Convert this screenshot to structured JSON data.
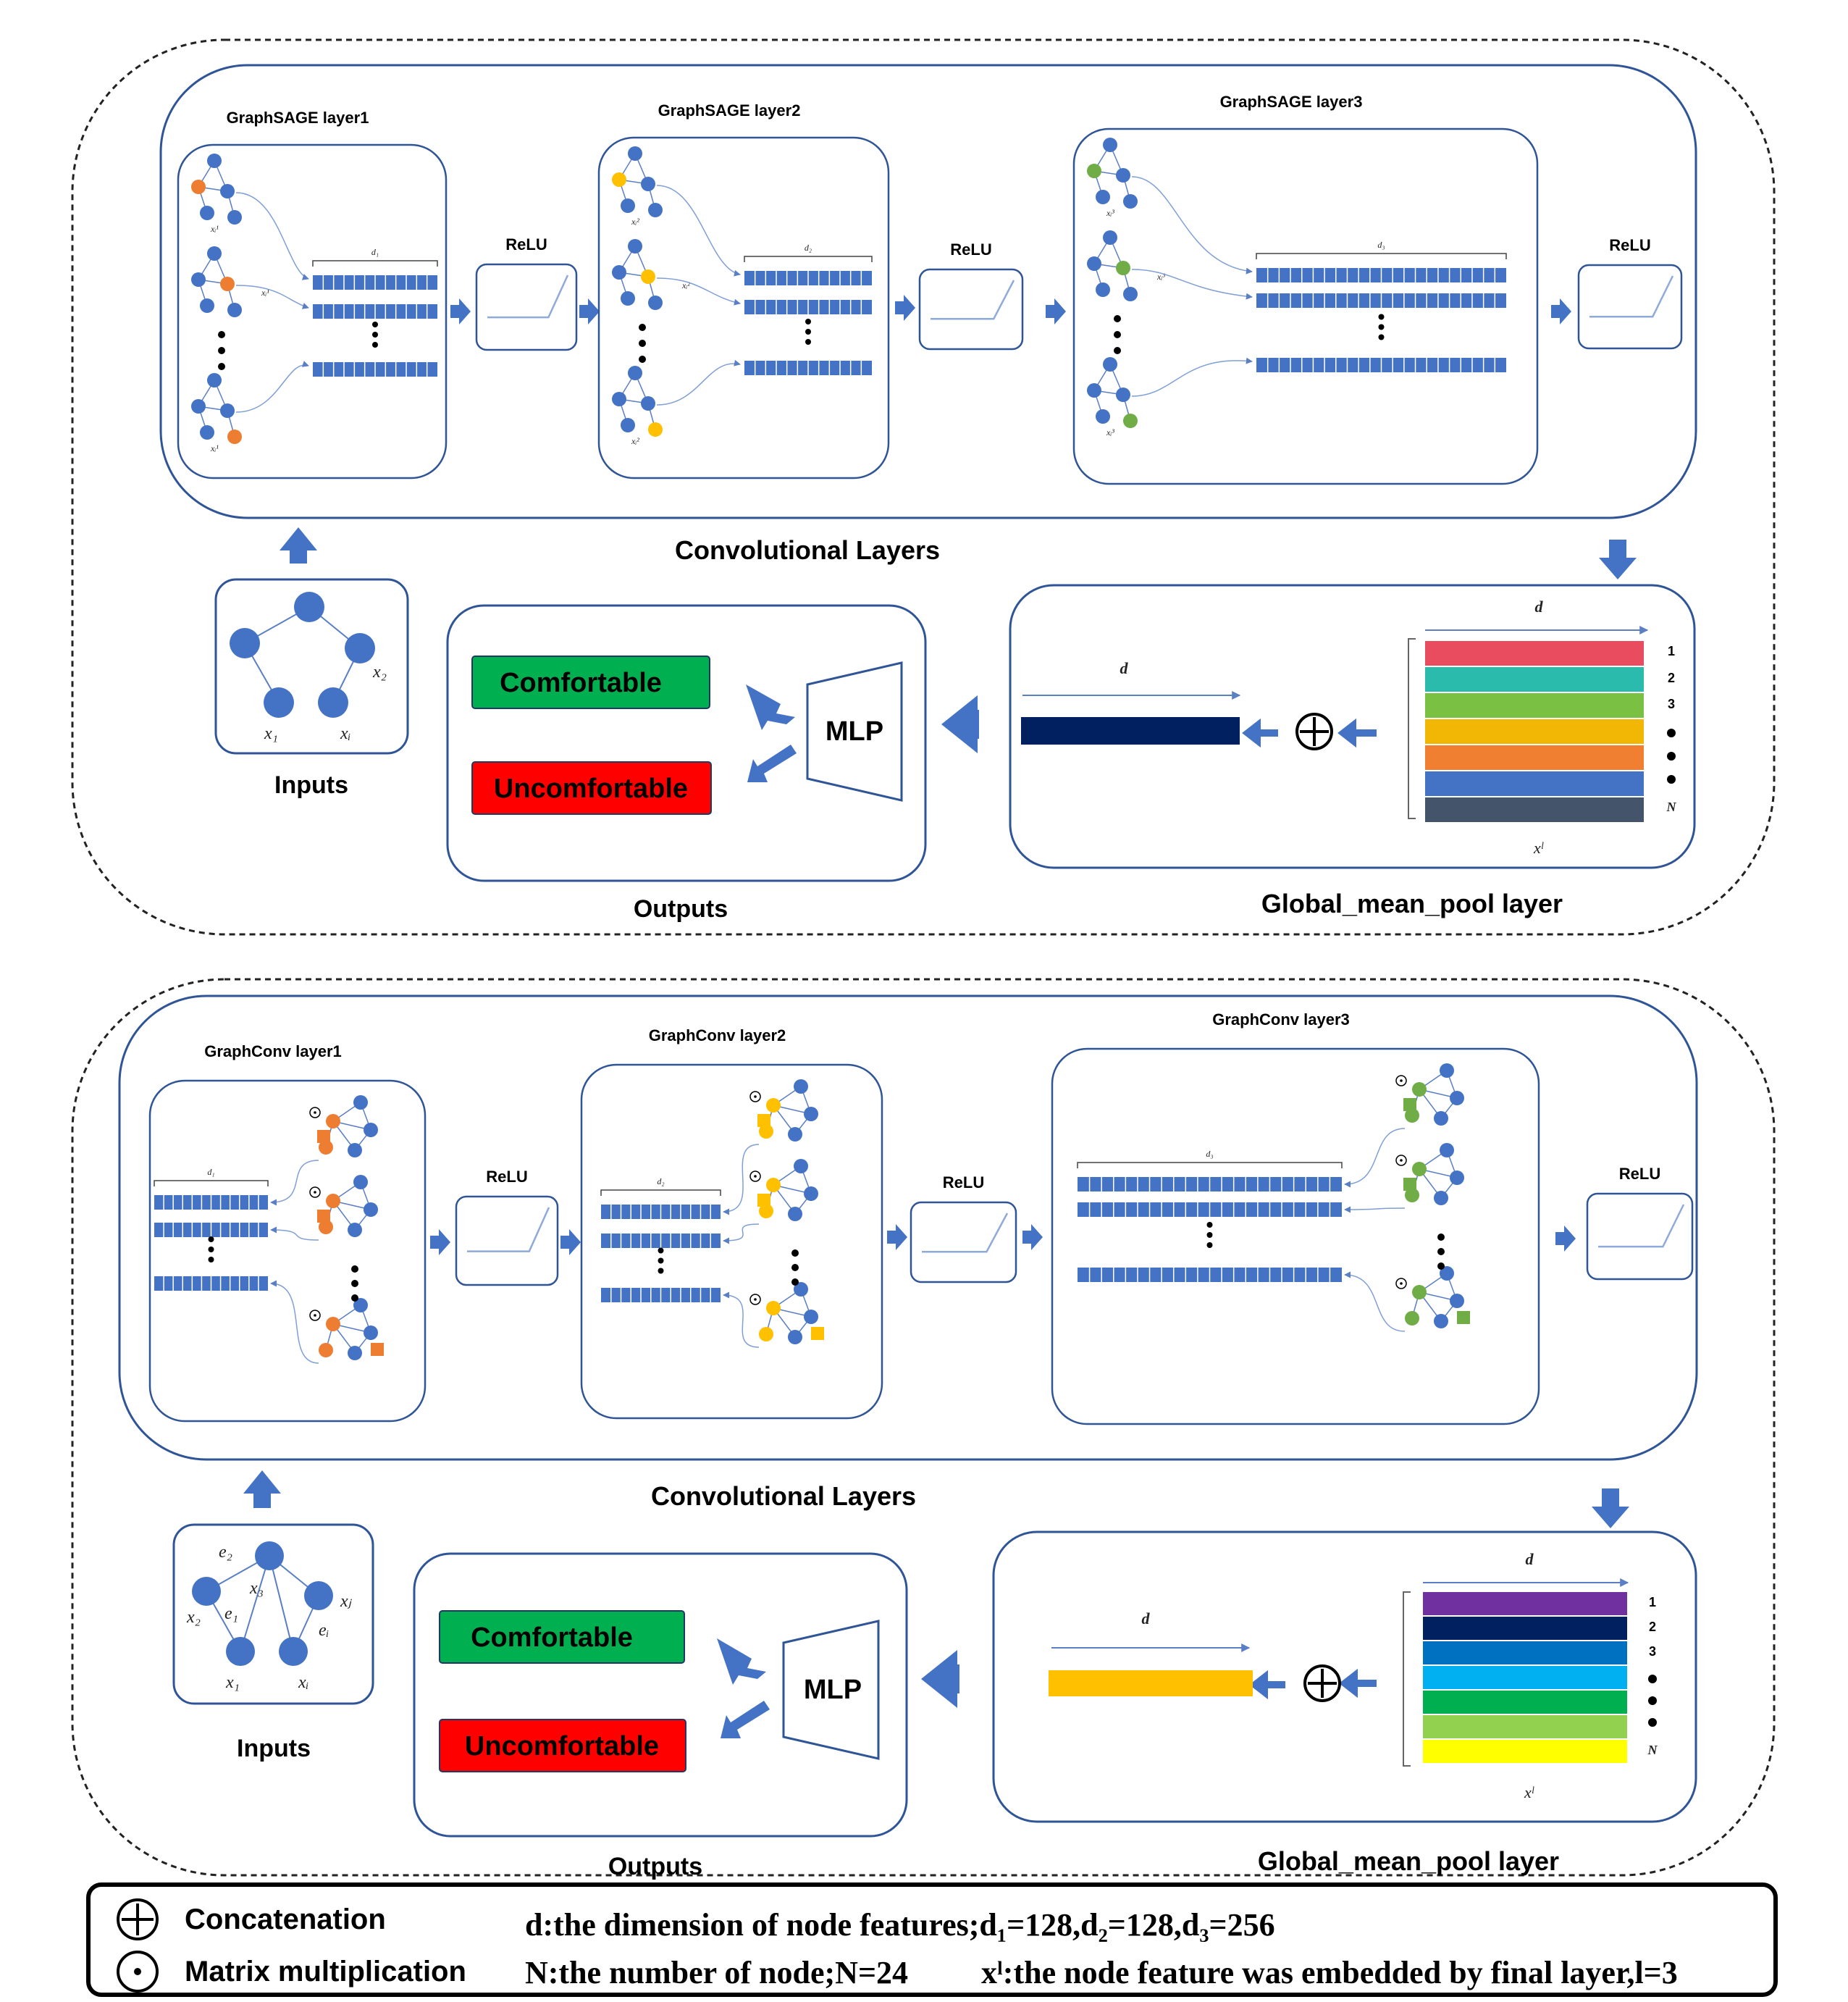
{
  "colors": {
    "node_blue": "#4472c4",
    "sage_l1_highlight": "#ed7d31",
    "sage_l2_highlight": "#ffc000",
    "sage_l3_highlight": "#70ad47",
    "comfortable": "#00b050",
    "uncomfortable": "#ff0000",
    "arrow": "#4472c4",
    "panel_border": "#2f5597"
  },
  "top": {
    "layers": [
      {
        "title": "GraphSAGE layer1",
        "dim": "d₁",
        "node_sub": "xᵢ¹"
      },
      {
        "title": "GraphSAGE layer2",
        "dim": "d₂",
        "node_sub": "xᵢ²"
      },
      {
        "title": "GraphSAGE layer3",
        "dim": "d₃",
        "node_sub": "xᵢ³"
      }
    ],
    "relu": "ReLU",
    "conv_title": "Convolutional Layers",
    "inputs_title": "Inputs",
    "inputs_labels": [
      "x₂",
      "x₁",
      "xᵢ"
    ],
    "outputs_title": "Outputs",
    "comfortable": "Comfortable",
    "uncomfortable": "Uncomfortable",
    "mlp": "MLP",
    "pool_title": "Global_mean_pool layer",
    "pool_d": "d",
    "pool_vec_d": "d",
    "pool_rows": [
      "1",
      "2",
      "3",
      "N"
    ],
    "pool_row_colors": [
      "#e84c5e",
      "#2bbbad",
      "#7ac143",
      "#f2b705",
      "#f07f31",
      "#4472c4",
      "#44546a"
    ],
    "pool_xl": "xˡ",
    "pool_vec_color": "#002060"
  },
  "bottom": {
    "layers": [
      {
        "title": "GraphConv layer1",
        "dim": "d₁"
      },
      {
        "title": "GraphConv layer2",
        "dim": "d₂"
      },
      {
        "title": "GraphConv layer3",
        "dim": "d₃"
      }
    ],
    "relu": "ReLU",
    "conv_title": "Convolutional Layers",
    "inputs_title": "Inputs",
    "inputs_labels": [
      "e₂",
      "x₃",
      "xⱼ",
      "x₂",
      "e₁",
      "eᵢ",
      "x₁",
      "xᵢ"
    ],
    "outputs_title": "Outputs",
    "comfortable": "Comfortable",
    "uncomfortable": "Uncomfortable",
    "mlp": "MLP",
    "pool_title": "Global_mean_pool layer",
    "pool_d": "d",
    "pool_vec_d": "d",
    "pool_rows": [
      "1",
      "2",
      "3",
      "N"
    ],
    "pool_row_colors": [
      "#7030a0",
      "#002060",
      "#0070c0",
      "#00b0f0",
      "#00b050",
      "#92d050",
      "#ffff00"
    ],
    "pool_xl": "xˡ",
    "pool_vec_color": "#ffc000"
  },
  "legend": {
    "concat": "Concatenation",
    "matmul": "Matrix multiplication",
    "line1": "d:the dimension of node features;d₁=128,d₂=128,d₃=256",
    "line2a": "N:the number of node;N=24",
    "line2b": "xˡ:the node feature was embedded by final layer,l=3"
  }
}
